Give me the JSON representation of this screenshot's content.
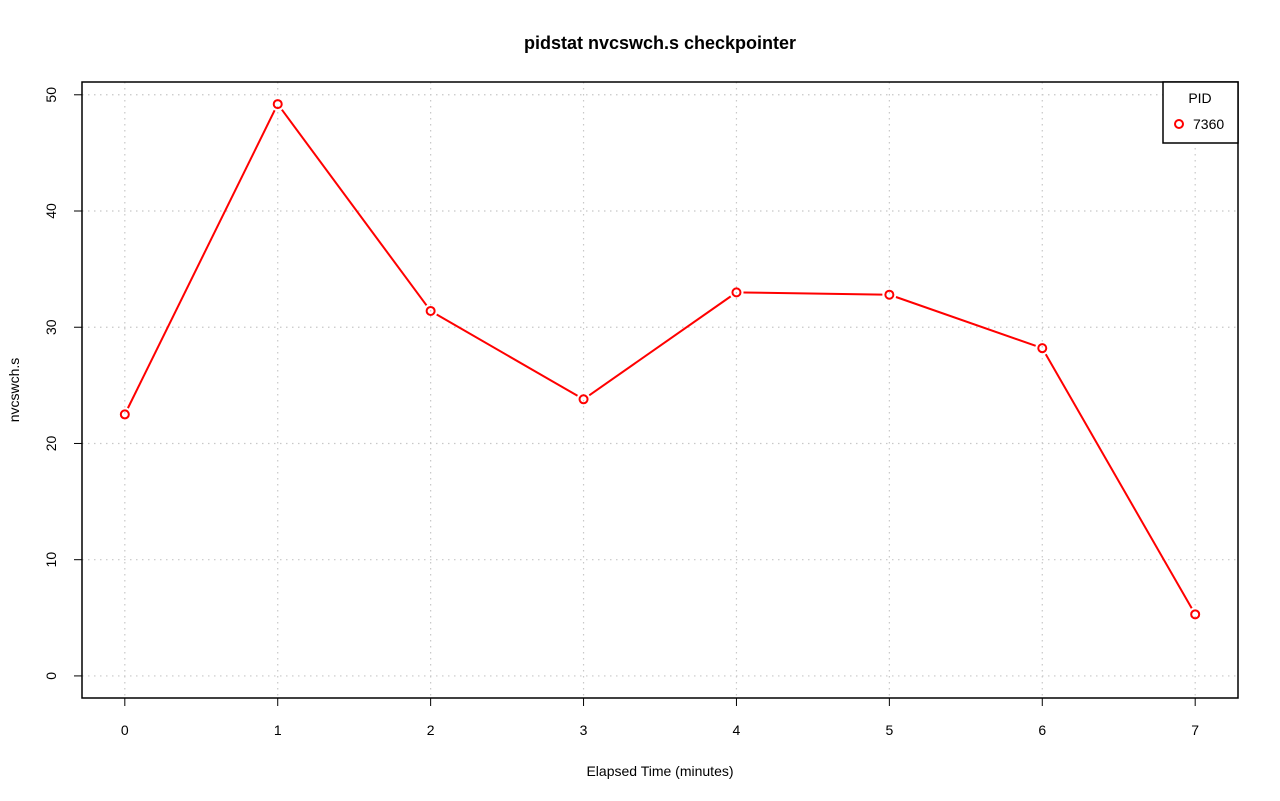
{
  "chart_data": {
    "type": "line",
    "title": "pidstat nvcswch.s checkpointer",
    "xlabel": "Elapsed Time (minutes)",
    "ylabel": "nvcswch.s",
    "x": [
      0,
      1,
      2,
      3,
      4,
      5,
      6,
      7
    ],
    "xlim": [
      -0.28,
      7.28
    ],
    "ylim": [
      -1.9,
      51.1
    ],
    "x_ticks": [
      0,
      1,
      2,
      3,
      4,
      5,
      6,
      7
    ],
    "y_ticks": [
      0,
      10,
      20,
      30,
      40,
      50
    ],
    "grid": true,
    "legend": {
      "title": "PID",
      "position": "top-right"
    },
    "series": [
      {
        "name": "7360",
        "color": "#ff0000",
        "values": [
          22.5,
          49.2,
          31.4,
          23.8,
          33.0,
          32.8,
          28.2,
          5.3
        ]
      }
    ]
  }
}
